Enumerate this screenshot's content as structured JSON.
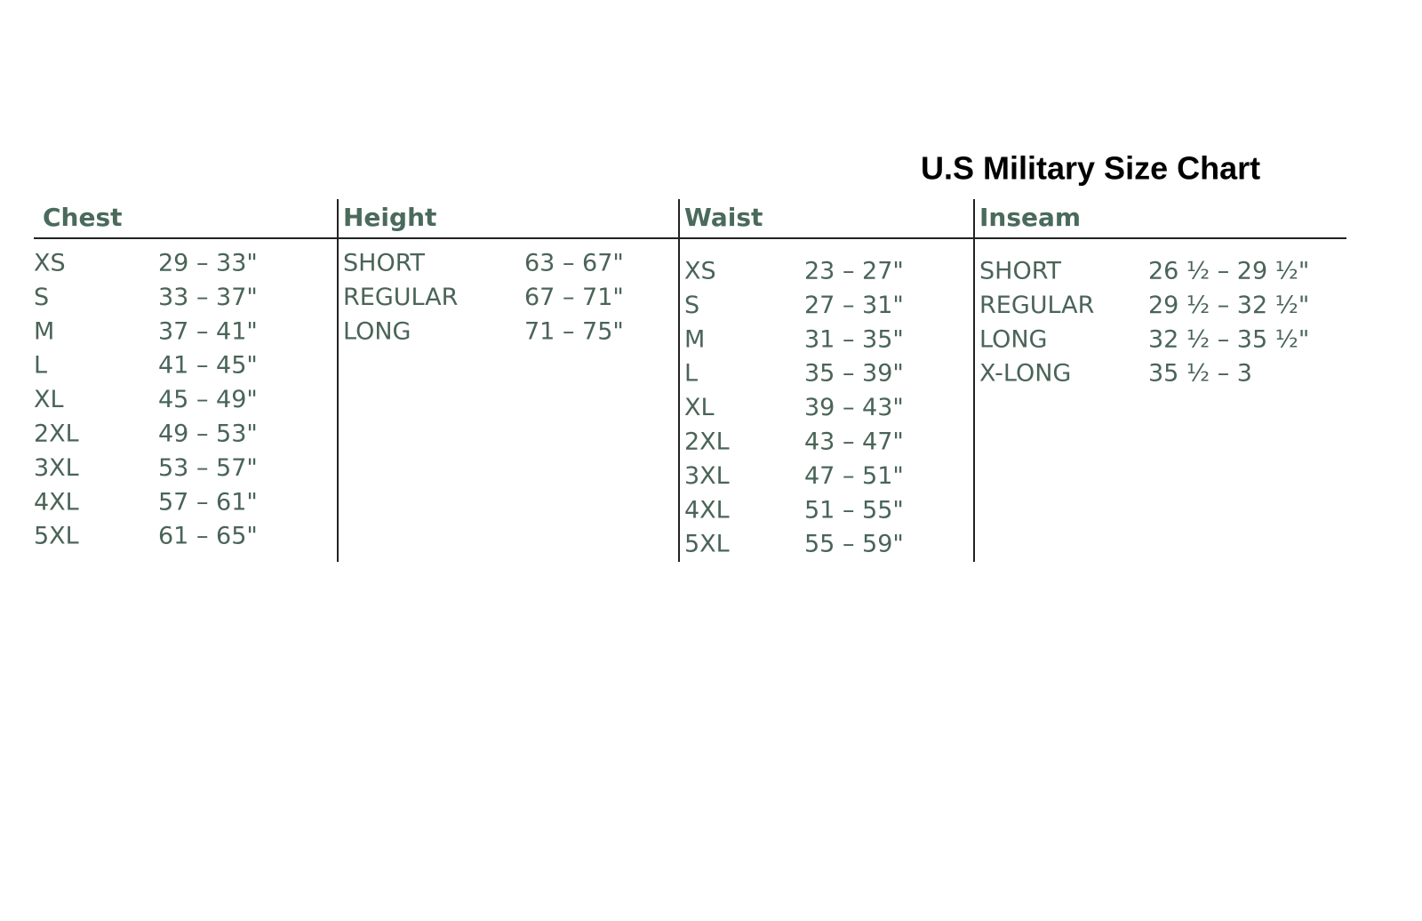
{
  "title": "U.S Military Size Chart",
  "sections": [
    {
      "header": "Chest",
      "rows": [
        [
          "XS",
          "29 – 33\""
        ],
        [
          "S",
          "33 – 37\""
        ],
        [
          "M",
          "37 – 41\""
        ],
        [
          "L",
          "41 – 45\""
        ],
        [
          "XL",
          "45 – 49\""
        ],
        [
          "2XL",
          "49 – 53\""
        ],
        [
          "3XL",
          "53 – 57\""
        ],
        [
          "4XL",
          "57 – 61\""
        ],
        [
          "5XL",
          "61 – 65\""
        ]
      ]
    },
    {
      "header": "Height",
      "rows": [
        [
          "SHORT",
          "63 – 67\""
        ],
        [
          "REGULAR",
          "67 – 71\""
        ],
        [
          "LONG",
          "71 – 75\""
        ]
      ]
    },
    {
      "header": "Waist",
      "rows": [
        [
          "XS",
          "23 – 27\""
        ],
        [
          "S",
          "27 – 31\""
        ],
        [
          "M",
          "31 – 35\""
        ],
        [
          "L",
          "35 – 39\""
        ],
        [
          "XL",
          "39 – 43\""
        ],
        [
          "2XL",
          "43 – 47\""
        ],
        [
          "3XL",
          "47 – 51\""
        ],
        [
          "4XL",
          "51 – 55\""
        ],
        [
          "5XL",
          "55 – 59\""
        ]
      ]
    },
    {
      "header": "Inseam",
      "rows": [
        [
          "SHORT",
          "26 ½ – 29 ½\""
        ],
        [
          "REGULAR",
          "29 ½ – 32 ½\""
        ],
        [
          "LONG",
          "32 ½ – 35 ½\""
        ],
        [
          "X-LONG",
          "35 ½ – 3"
        ]
      ]
    }
  ]
}
